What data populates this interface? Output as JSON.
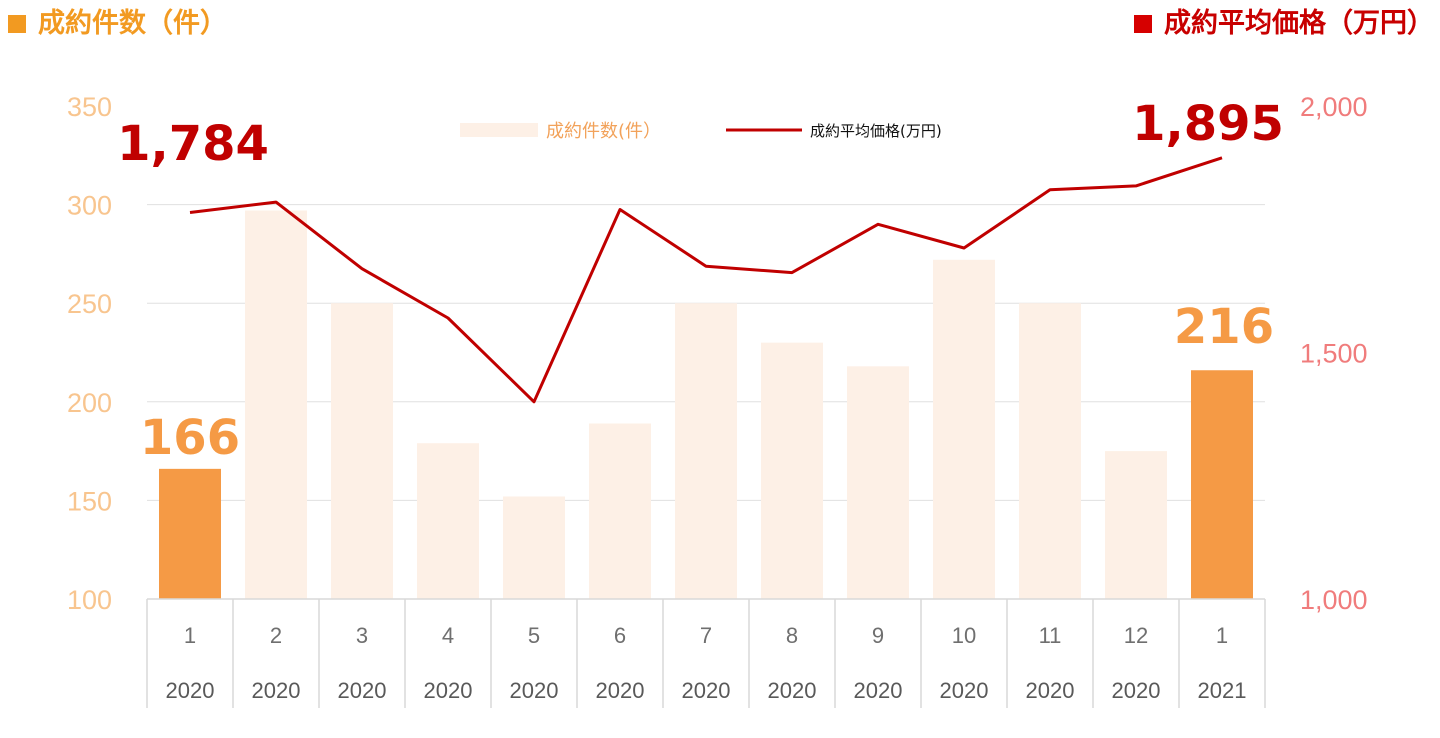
{
  "header": {
    "left_title": "成約件数（件）",
    "right_title": "成約平均価格（万円）",
    "left_color": "#f29a21",
    "right_color": "#d60000"
  },
  "chart_data": {
    "type": "bar+line",
    "categories": [
      "1",
      "2",
      "3",
      "4",
      "5",
      "6",
      "7",
      "8",
      "9",
      "10",
      "11",
      "12",
      "1"
    ],
    "years": [
      "2020",
      "2020",
      "2020",
      "2020",
      "2020",
      "2020",
      "2020",
      "2020",
      "2020",
      "2020",
      "2020",
      "2020",
      "2021"
    ],
    "series": [
      {
        "name": "成約件数(件）",
        "type": "bar",
        "axis": "left",
        "values": [
          166,
          297,
          250,
          179,
          152,
          189,
          250,
          230,
          218,
          272,
          250,
          175,
          216
        ],
        "highlight_indices": [
          0,
          12
        ],
        "color": "#fdf0e6",
        "highlight_color": "#f59a45"
      },
      {
        "name": "成約平均価格(万円)",
        "type": "line",
        "axis": "right",
        "values": [
          1784,
          1805,
          1670,
          1570,
          1400,
          1790,
          1675,
          1662,
          1760,
          1712,
          1830,
          1838,
          1895
        ],
        "color": "#c00000"
      }
    ],
    "y_left": {
      "min": 100,
      "max": 350,
      "ticks": [
        "100",
        "150",
        "200",
        "250",
        "300",
        "350"
      ]
    },
    "y_right": {
      "min": 1000,
      "max": 2000,
      "ticks": [
        "1,000",
        "1,500",
        "2,000"
      ]
    },
    "callouts": [
      {
        "text": "166",
        "series": 0,
        "index": 0
      },
      {
        "text": "216",
        "series": 0,
        "index": 12
      },
      {
        "text": "1,784",
        "series": 1,
        "index": 0
      },
      {
        "text": "1,895",
        "series": 1,
        "index": 12
      }
    ],
    "legend_position": "top-center",
    "grid": true
  }
}
